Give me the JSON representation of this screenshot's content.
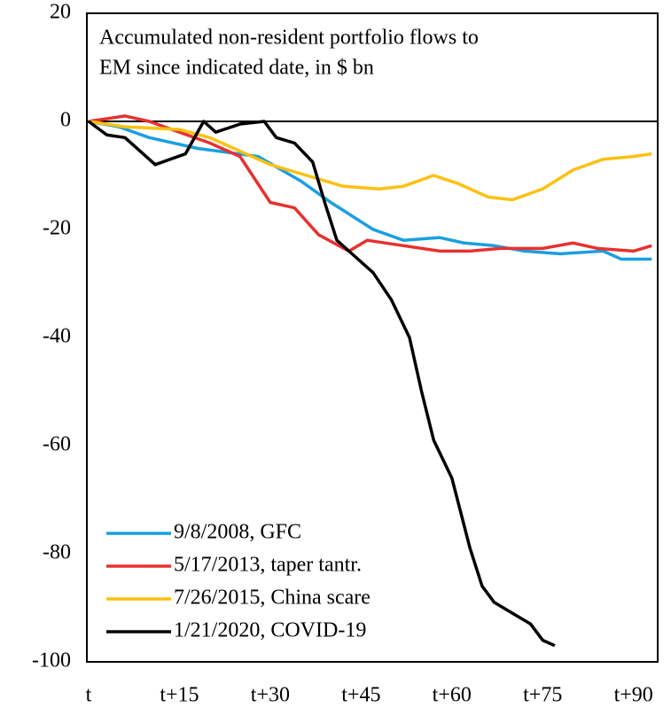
{
  "chart_data": {
    "type": "line",
    "title": "Accumulated non-resident portfolio flows to",
    "subtitle": "EM since indicated date, in $ bn",
    "xlim": [
      0,
      94
    ],
    "xticks": [
      {
        "value": 0,
        "label": "t"
      },
      {
        "value": 15,
        "label": "t+15"
      },
      {
        "value": 30,
        "label": "t+30"
      },
      {
        "value": 45,
        "label": "t+45"
      },
      {
        "value": 60,
        "label": "t+60"
      },
      {
        "value": 75,
        "label": "t+75"
      },
      {
        "value": 90,
        "label": "t+90"
      }
    ],
    "ylim": [
      -100,
      20
    ],
    "yticks": [
      20,
      0,
      -20,
      -40,
      -60,
      -80,
      -100
    ],
    "legend": "lower left",
    "series": [
      {
        "name": "9/8/2008, GFC",
        "color": "#1a9fe0",
        "x": [
          0,
          5,
          10,
          18,
          28,
          35,
          40,
          47,
          52,
          58,
          62,
          67,
          72,
          78,
          85,
          88,
          93
        ],
        "values": [
          0,
          -1,
          -3,
          -5,
          -6.5,
          -11,
          -15,
          -20,
          -22,
          -21.5,
          -22.5,
          -23,
          -24,
          -24.5,
          -24,
          -25.5,
          -25.5
        ]
      },
      {
        "name": "5/17/2013, taper tantr.",
        "color": "#e8312f",
        "x": [
          0,
          6,
          10,
          15,
          20,
          25,
          30,
          34,
          38,
          43,
          46,
          52,
          58,
          63,
          68,
          75,
          80,
          84,
          90,
          93
        ],
        "values": [
          0,
          1,
          0,
          -2,
          -4,
          -6.5,
          -15,
          -16,
          -21,
          -24,
          -22,
          -23,
          -24,
          -24,
          -23.5,
          -23.5,
          -22.5,
          -23.5,
          -24,
          -23
        ]
      },
      {
        "name": "7/26/2015, China scare",
        "color": "#fcc10f",
        "x": [
          0,
          6,
          15,
          20,
          25,
          30,
          36,
          42,
          48,
          52,
          57,
          61,
          66,
          70,
          75,
          80,
          85,
          90,
          93
        ],
        "values": [
          0,
          -1,
          -1.5,
          -3,
          -5.5,
          -8,
          -10,
          -12,
          -12.5,
          -12,
          -10,
          -11.5,
          -14,
          -14.5,
          -12.5,
          -9,
          -7,
          -6.5,
          -6
        ]
      },
      {
        "name": "1/21/2020, COVID-19",
        "color": "#000000",
        "x": [
          0,
          3,
          6,
          11,
          16,
          19,
          21,
          25,
          29,
          31,
          34,
          37,
          39,
          41,
          44,
          47,
          50,
          53,
          55,
          57,
          60,
          63,
          65,
          67,
          70,
          73,
          75,
          77
        ],
        "values": [
          0,
          -2.5,
          -3,
          -8,
          -6,
          0,
          -2,
          -0.5,
          0,
          -3,
          -4,
          -7.5,
          -15,
          -22,
          -25,
          -28,
          -33,
          -40,
          -50,
          -59,
          -66,
          -79,
          -86,
          -89,
          -91,
          -93,
          -96,
          -97
        ]
      }
    ]
  }
}
